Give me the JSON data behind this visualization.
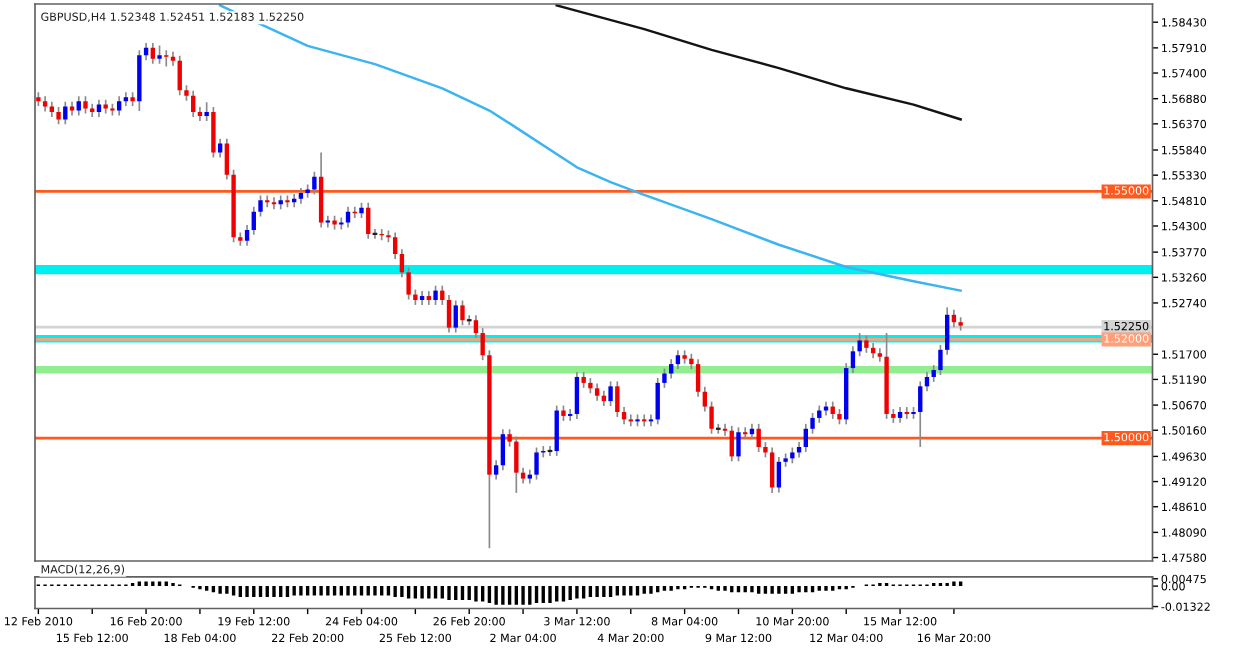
{
  "chart_data": [
    {
      "type": "candlestick",
      "title": "GBPUSD,H4 1.52348 1.52451 1.52183 1.52250",
      "tick_labels": "y",
      "ohlc": [
        [
          1.5691,
          1.5701,
          1.5673,
          1.5683
        ],
        [
          1.5683,
          1.5693,
          1.5662,
          1.5672
        ],
        [
          1.5672,
          1.5682,
          1.5651,
          1.5661
        ],
        [
          1.5661,
          1.5671,
          1.5636,
          1.5646
        ],
        [
          1.5646,
          1.5682,
          1.5636,
          1.5672
        ],
        [
          1.5672,
          1.5682,
          1.5654,
          1.5664
        ],
        [
          1.5664,
          1.5693,
          1.5654,
          1.5683
        ],
        [
          1.5683,
          1.5693,
          1.5658,
          1.5668
        ],
        [
          1.5668,
          1.5678,
          1.5651,
          1.5661
        ],
        [
          1.5661,
          1.5686,
          1.5651,
          1.5676
        ],
        [
          1.5676,
          1.5686,
          1.5658,
          1.5668
        ],
        [
          1.5668,
          1.5678,
          1.5654,
          1.5664
        ],
        [
          1.5664,
          1.5693,
          1.5654,
          1.5683
        ],
        [
          1.5683,
          1.5701,
          1.5673,
          1.5691
        ],
        [
          1.5691,
          1.5701,
          1.5673,
          1.5683
        ],
        [
          1.5683,
          1.5786,
          1.5663,
          1.5776
        ],
        [
          1.5776,
          1.5801,
          1.5766,
          1.5791
        ],
        [
          1.5791,
          1.5801,
          1.5759,
          1.5769
        ],
        [
          1.5769,
          1.5796,
          1.5759,
          1.5776
        ],
        [
          1.5776,
          1.5786,
          1.5753,
          1.5773
        ],
        [
          1.5773,
          1.5783,
          1.5755,
          1.5765
        ],
        [
          1.5765,
          1.5775,
          1.5695,
          1.5705
        ],
        [
          1.5705,
          1.5715,
          1.5684,
          1.5694
        ],
        [
          1.5694,
          1.5704,
          1.5651,
          1.5661
        ],
        [
          1.5661,
          1.5671,
          1.5643,
          1.5653
        ],
        [
          1.5653,
          1.5681,
          1.5643,
          1.5661
        ],
        [
          1.5661,
          1.5671,
          1.5569,
          1.5579
        ],
        [
          1.5579,
          1.5607,
          1.5569,
          1.5597
        ],
        [
          1.5597,
          1.5607,
          1.5524,
          1.5534
        ],
        [
          1.5534,
          1.5544,
          1.5397,
          1.5407
        ],
        [
          1.5407,
          1.5417,
          1.539,
          1.54
        ],
        [
          1.54,
          1.5432,
          1.539,
          1.5422
        ],
        [
          1.5422,
          1.5469,
          1.5412,
          1.5459
        ],
        [
          1.5459,
          1.5492,
          1.5449,
          1.5482
        ],
        [
          1.5482,
          1.5492,
          1.5468,
          1.5478
        ],
        [
          1.5478,
          1.5488,
          1.5464,
          1.5474
        ],
        [
          1.5474,
          1.5492,
          1.5464,
          1.5482
        ],
        [
          1.5482,
          1.5492,
          1.5468,
          1.5478
        ],
        [
          1.5478,
          1.5495,
          1.5468,
          1.5485
        ],
        [
          1.5485,
          1.5507,
          1.5475,
          1.5497
        ],
        [
          1.5497,
          1.5514,
          1.5487,
          1.5504
        ],
        [
          1.5504,
          1.554,
          1.5494,
          1.553
        ],
        [
          1.553,
          1.5579,
          1.5427,
          1.5437
        ],
        [
          1.5437,
          1.5451,
          1.5427,
          1.5441
        ],
        [
          1.5441,
          1.5451,
          1.5423,
          1.5433
        ],
        [
          1.5433,
          1.5447,
          1.5423,
          1.5437
        ],
        [
          1.5437,
          1.5469,
          1.5427,
          1.5459
        ],
        [
          1.5459,
          1.5469,
          1.5446,
          1.5456
        ],
        [
          1.5456,
          1.5477,
          1.5446,
          1.5467
        ],
        [
          1.5467,
          1.5477,
          1.5404,
          1.5414
        ],
        [
          1.5414,
          1.5424,
          1.5404,
          1.5414
        ],
        [
          1.5414,
          1.5424,
          1.5401,
          1.5411
        ],
        [
          1.5411,
          1.5421,
          1.5397,
          1.5407
        ],
        [
          1.5407,
          1.5417,
          1.5363,
          1.5373
        ],
        [
          1.5373,
          1.5383,
          1.5326,
          1.5336
        ],
        [
          1.5336,
          1.5346,
          1.5281,
          1.5291
        ],
        [
          1.5291,
          1.5301,
          1.527,
          1.528
        ],
        [
          1.528,
          1.5298,
          1.527,
          1.5288
        ],
        [
          1.5288,
          1.5298,
          1.527,
          1.528
        ],
        [
          1.528,
          1.5309,
          1.527,
          1.5299
        ],
        [
          1.5299,
          1.5309,
          1.527,
          1.528
        ],
        [
          1.528,
          1.529,
          1.5214,
          1.5224
        ],
        [
          1.5224,
          1.5279,
          1.5214,
          1.5269
        ],
        [
          1.5269,
          1.5279,
          1.5229,
          1.5239
        ],
        [
          1.5239,
          1.5249,
          1.5229,
          1.5239
        ],
        [
          1.5239,
          1.5249,
          1.5203,
          1.5213
        ],
        [
          1.5213,
          1.5223,
          1.5158,
          1.5168
        ],
        [
          1.5168,
          1.5178,
          1.4777,
          1.4926
        ],
        [
          1.4926,
          1.4955,
          1.4916,
          1.4945
        ],
        [
          1.4945,
          1.5018,
          1.4935,
          1.5008
        ],
        [
          1.5008,
          1.5018,
          1.4983,
          1.4993
        ],
        [
          1.4993,
          1.5003,
          1.4889,
          1.493
        ],
        [
          1.493,
          1.494,
          1.4908,
          1.4918
        ],
        [
          1.4918,
          1.4936,
          1.4908,
          1.4926
        ],
        [
          1.4926,
          1.4981,
          1.4916,
          1.4971
        ],
        [
          1.4971,
          1.4984,
          1.4961,
          1.4974
        ],
        [
          1.4974,
          1.4984,
          1.4964,
          1.4974
        ],
        [
          1.4974,
          1.5066,
          1.4964,
          1.5056
        ],
        [
          1.5056,
          1.5066,
          1.5035,
          1.5045
        ],
        [
          1.5045,
          1.5059,
          1.5035,
          1.5049
        ],
        [
          1.5049,
          1.5134,
          1.5039,
          1.5124
        ],
        [
          1.5124,
          1.5134,
          1.5102,
          1.5112
        ],
        [
          1.5112,
          1.5122,
          1.5091,
          1.5101
        ],
        [
          1.5101,
          1.5111,
          1.5076,
          1.5086
        ],
        [
          1.5086,
          1.5096,
          1.5065,
          1.5075
        ],
        [
          1.5075,
          1.5115,
          1.5065,
          1.5105
        ],
        [
          1.5105,
          1.5115,
          1.5043,
          1.5053
        ],
        [
          1.5053,
          1.5063,
          1.5028,
          1.5038
        ],
        [
          1.5038,
          1.5048,
          1.5024,
          1.5034
        ],
        [
          1.5034,
          1.5048,
          1.5024,
          1.5038
        ],
        [
          1.5038,
          1.5048,
          1.5024,
          1.5034
        ],
        [
          1.5034,
          1.5048,
          1.5024,
          1.5038
        ],
        [
          1.5038,
          1.5122,
          1.5028,
          1.5112
        ],
        [
          1.5112,
          1.5141,
          1.5102,
          1.5131
        ],
        [
          1.5131,
          1.516,
          1.5121,
          1.515
        ],
        [
          1.515,
          1.5178,
          1.514,
          1.5168
        ],
        [
          1.5168,
          1.5178,
          1.5151,
          1.5161
        ],
        [
          1.5161,
          1.5171,
          1.514,
          1.515
        ],
        [
          1.515,
          1.516,
          1.5084,
          1.5094
        ],
        [
          1.5094,
          1.5104,
          1.5054,
          1.5064
        ],
        [
          1.5064,
          1.5074,
          1.5009,
          1.5019
        ],
        [
          1.5019,
          1.5029,
          1.5009,
          1.5019
        ],
        [
          1.5019,
          1.5029,
          1.5005,
          1.5015
        ],
        [
          1.5015,
          1.5025,
          1.4953,
          1.4963
        ],
        [
          1.4963,
          1.5022,
          1.4953,
          1.5012
        ],
        [
          1.5012,
          1.5022,
          1.4998,
          1.5008
        ],
        [
          1.5008,
          1.5029,
          1.4998,
          1.5019
        ],
        [
          1.5019,
          1.5029,
          1.4972,
          1.4982
        ],
        [
          1.4982,
          1.4992,
          1.4961,
          1.4971
        ],
        [
          1.4971,
          1.4981,
          1.4889,
          1.49
        ],
        [
          1.49,
          1.4962,
          1.489,
          1.4952
        ],
        [
          1.4952,
          1.4969,
          1.4942,
          1.4959
        ],
        [
          1.4959,
          1.4981,
          1.4949,
          1.4971
        ],
        [
          1.4971,
          1.4992,
          1.4961,
          1.4982
        ],
        [
          1.4982,
          1.5029,
          1.4972,
          1.5019
        ],
        [
          1.5019,
          1.5051,
          1.5009,
          1.5041
        ],
        [
          1.5041,
          1.5066,
          1.5031,
          1.5056
        ],
        [
          1.5056,
          1.5074,
          1.5046,
          1.5064
        ],
        [
          1.5064,
          1.5074,
          1.5039,
          1.5049
        ],
        [
          1.5049,
          1.5059,
          1.5028,
          1.5038
        ],
        [
          1.5038,
          1.5152,
          1.5028,
          1.5142
        ],
        [
          1.5142,
          1.5186,
          1.5132,
          1.5176
        ],
        [
          1.5176,
          1.5213,
          1.5166,
          1.5198
        ],
        [
          1.5198,
          1.5208,
          1.5173,
          1.5183
        ],
        [
          1.5183,
          1.5193,
          1.5162,
          1.5172
        ],
        [
          1.5172,
          1.5182,
          1.5155,
          1.5165
        ],
        [
          1.5165,
          1.5213,
          1.5039,
          1.5049
        ],
        [
          1.5049,
          1.5059,
          1.5031,
          1.5041
        ],
        [
          1.5041,
          1.5063,
          1.5031,
          1.5053
        ],
        [
          1.5053,
          1.5063,
          1.5039,
          1.5049
        ],
        [
          1.5049,
          1.5063,
          1.5039,
          1.5053
        ],
        [
          1.5053,
          1.5115,
          1.4982,
          1.5105
        ],
        [
          1.5105,
          1.5134,
          1.5095,
          1.5124
        ],
        [
          1.5124,
          1.5148,
          1.5114,
          1.5138
        ],
        [
          1.5138,
          1.5189,
          1.5128,
          1.5179
        ],
        [
          1.5179,
          1.5265,
          1.5169,
          1.525
        ],
        [
          1.525,
          1.526,
          1.5225,
          1.5235
        ],
        [
          1.5235,
          1.5245,
          1.5218,
          1.5228
        ],
        null,
        null,
        null,
        null,
        null,
        null,
        null,
        null,
        null,
        null,
        null,
        null,
        null,
        null,
        null,
        null,
        null,
        null,
        null,
        null,
        null,
        null,
        null,
        null,
        null,
        null,
        null,
        null
      ],
      "series": [
        {
          "type": "line",
          "color": "#3cb4f0",
          "values": [
            null,
            null,
            null,
            null,
            null,
            null,
            null,
            null,
            null,
            null,
            null,
            null,
            null,
            null,
            null,
            null,
            null,
            null,
            null,
            null,
            null,
            null,
            null,
            null,
            null,
            null,
            null,
            1.5877,
            null,
            null,
            1.5858,
            null,
            null,
            null,
            null,
            null,
            null,
            null,
            null,
            null,
            1.5795,
            null,
            null,
            null,
            null,
            null,
            null,
            null,
            null,
            null,
            1.5758,
            null,
            null,
            null,
            null,
            null,
            null,
            null,
            null,
            null,
            1.5709,
            null,
            null,
            null,
            null,
            null,
            null,
            1.5664,
            null,
            null,
            1.5638,
            null,
            null,
            null,
            null,
            null,
            null,
            null,
            null,
            null,
            1.5549,
            null,
            null,
            null,
            null,
            1.5519,
            null,
            null,
            null,
            null,
            1.5493,
            null,
            null,
            null,
            null,
            null,
            null,
            null,
            null,
            null,
            1.5444,
            null,
            null,
            null,
            null,
            null,
            null,
            null,
            null,
            null,
            1.5392,
            null,
            null,
            null,
            null,
            null,
            null,
            null,
            null,
            null,
            1.5347,
            null,
            null,
            null,
            null,
            null,
            null,
            null,
            null,
            null,
            1.5318,
            null,
            null,
            null,
            null,
            null,
            null,
            1.5299,
            null,
            null,
            null,
            null,
            null,
            null,
            null,
            null,
            null,
            null,
            null,
            null,
            null,
            null,
            null,
            null,
            null,
            null,
            null,
            null,
            null,
            null,
            null,
            null,
            null,
            null,
            null,
            null
          ]
        },
        {
          "type": "line",
          "color": "#141414",
          "values": [
            null,
            null,
            null,
            null,
            null,
            null,
            null,
            null,
            null,
            null,
            null,
            null,
            null,
            null,
            null,
            null,
            null,
            null,
            null,
            null,
            null,
            null,
            null,
            null,
            null,
            null,
            null,
            null,
            null,
            null,
            null,
            null,
            null,
            null,
            null,
            null,
            null,
            null,
            null,
            null,
            null,
            null,
            null,
            null,
            null,
            null,
            null,
            null,
            null,
            null,
            null,
            null,
            null,
            null,
            null,
            null,
            null,
            null,
            null,
            null,
            null,
            null,
            null,
            null,
            null,
            null,
            null,
            null,
            null,
            null,
            null,
            null,
            null,
            null,
            null,
            null,
            null,
            1.5877,
            null,
            null,
            1.5866,
            null,
            null,
            null,
            null,
            null,
            null,
            null,
            null,
            null,
            1.5829,
            null,
            null,
            null,
            null,
            null,
            null,
            null,
            null,
            null,
            1.5787,
            null,
            null,
            null,
            null,
            null,
            null,
            null,
            null,
            null,
            1.575,
            null,
            null,
            null,
            null,
            null,
            null,
            null,
            null,
            null,
            1.5709,
            null,
            null,
            null,
            null,
            null,
            null,
            null,
            null,
            null,
            1.5676,
            null,
            null,
            null,
            null,
            null,
            null,
            1.5646,
            null,
            null,
            null,
            null,
            null,
            null,
            null,
            null,
            null,
            null,
            null,
            null,
            null,
            null,
            null,
            null,
            null,
            null,
            null,
            null,
            null,
            null,
            null,
            null,
            null,
            null,
            null,
            null
          ]
        }
      ],
      "ylim": [
        1.4751,
        1.588
      ],
      "yticks": [
        {
          "value": 1.5843,
          "label": "1.58430"
        },
        {
          "value": 1.5791,
          "label": "1.57910"
        },
        {
          "value": 1.574,
          "label": "1.57400"
        },
        {
          "value": 1.5688,
          "label": "1.56880"
        },
        {
          "value": 1.5637,
          "label": "1.56370"
        },
        {
          "value": 1.5584,
          "label": "1.55840"
        },
        {
          "value": 1.5533,
          "label": "1.55330"
        },
        {
          "value": 1.5481,
          "label": "1.54810"
        },
        {
          "value": 1.543,
          "label": "1.54300"
        },
        {
          "value": 1.5377,
          "label": "1.53770"
        },
        {
          "value": 1.5326,
          "label": "1.53260"
        },
        {
          "value": 1.5274,
          "label": "1.52740"
        },
        {
          "value": 1.517,
          "label": "1.51700"
        },
        {
          "value": 1.5119,
          "label": "1.51190"
        },
        {
          "value": 1.5067,
          "label": "1.50670"
        },
        {
          "value": 1.5016,
          "label": "1.50160"
        },
        {
          "value": 1.4963,
          "label": "1.49630"
        },
        {
          "value": 1.4912,
          "label": "1.49120"
        },
        {
          "value": 1.4861,
          "label": "1.48610"
        },
        {
          "value": 1.4809,
          "label": "1.48090"
        },
        {
          "value": 1.4758,
          "label": "1.47580"
        }
      ],
      "ref_lines": [
        {
          "axis": "y",
          "value": 1.55,
          "label": "1.55000",
          "color": "#ff5a1e"
        },
        {
          "axis": "y",
          "value": 1.5225,
          "label": "1.52250",
          "color": "#d4d4d4"
        },
        {
          "axis": "y",
          "value": 1.52,
          "label": "1.52000",
          "color": "#ffa07a"
        },
        {
          "axis": "y",
          "value": 1.5,
          "label": "1.50000",
          "color": "#ff5a1e"
        }
      ],
      "bands": [
        {
          "axis": "y",
          "from": 1.5332,
          "to": 1.5351,
          "color": "#00f0f0"
        },
        {
          "axis": "y",
          "from": 1.5194,
          "to": 1.5209,
          "color": "#00f0f0"
        },
        {
          "axis": "y",
          "from": 1.5131,
          "to": 1.5146,
          "color": "#90ee90"
        }
      ]
    },
    {
      "type": "bar",
      "title": "MACD(12,26,9)",
      "color": "#000000",
      "categories": [
        "12 Feb 2010",
        null,
        null,
        null,
        null,
        null,
        null,
        null,
        "15 Feb 12:00",
        null,
        null,
        null,
        null,
        null,
        null,
        null,
        "16 Feb 20:00",
        null,
        null,
        null,
        null,
        null,
        null,
        null,
        "18 Feb 04:00",
        null,
        null,
        null,
        null,
        null,
        null,
        null,
        "19 Feb 12:00",
        null,
        null,
        null,
        null,
        null,
        null,
        null,
        "22 Feb 20:00",
        null,
        null,
        null,
        null,
        null,
        null,
        null,
        "24 Feb 04:00",
        null,
        null,
        null,
        null,
        null,
        null,
        null,
        "25 Feb 12:00",
        null,
        null,
        null,
        null,
        null,
        null,
        null,
        "26 Feb 20:00",
        null,
        null,
        null,
        null,
        null,
        null,
        null,
        "2 Mar 04:00",
        null,
        null,
        null,
        null,
        null,
        null,
        null,
        "3 Mar 12:00",
        null,
        null,
        null,
        null,
        null,
        null,
        null,
        "4 Mar 20:00",
        null,
        null,
        null,
        null,
        null,
        null,
        null,
        "8 Mar 04:00",
        null,
        null,
        null,
        null,
        null,
        null,
        null,
        "9 Mar 12:00",
        null,
        null,
        null,
        null,
        null,
        null,
        null,
        "10 Mar 20:00",
        null,
        null,
        null,
        null,
        null,
        null,
        null,
        "12 Mar 04:00",
        null,
        null,
        null,
        null,
        null,
        null,
        null,
        "15 Mar 12:00",
        null,
        null,
        null,
        null,
        null,
        null,
        null,
        "16 Mar 20:00",
        null,
        null,
        null,
        null,
        null,
        null,
        null,
        null,
        null,
        null,
        null,
        null,
        null,
        null,
        null,
        null,
        null,
        null,
        null,
        null,
        null,
        null,
        null,
        null,
        null,
        null,
        null,
        null,
        null
      ],
      "values": [
        0.001,
        0.001,
        0.001,
        0.001,
        0.001,
        0.001,
        0.001,
        0.001,
        0.001,
        0.001,
        0.001,
        0.001,
        0.001,
        0.001,
        0.002,
        0.003,
        0.003,
        0.003,
        0.003,
        0.003,
        0.002,
        0.001,
        0.0,
        -0.001,
        -0.002,
        -0.003,
        -0.004,
        -0.005,
        -0.005,
        -0.006,
        -0.007,
        -0.007,
        -0.007,
        -0.007,
        -0.007,
        -0.007,
        -0.007,
        -0.007,
        -0.006,
        -0.006,
        -0.006,
        -0.006,
        -0.006,
        -0.006,
        -0.006,
        -0.006,
        -0.006,
        -0.006,
        -0.006,
        -0.006,
        -0.006,
        -0.006,
        -0.006,
        -0.007,
        -0.007,
        -0.008,
        -0.008,
        -0.008,
        -0.008,
        -0.008,
        -0.008,
        -0.009,
        -0.009,
        -0.009,
        -0.009,
        -0.01,
        -0.01,
        -0.011,
        -0.012,
        -0.012,
        -0.012,
        -0.012,
        -0.012,
        -0.012,
        -0.011,
        -0.011,
        -0.011,
        -0.01,
        -0.01,
        -0.009,
        -0.008,
        -0.008,
        -0.007,
        -0.007,
        -0.007,
        -0.007,
        -0.006,
        -0.006,
        -0.006,
        -0.006,
        -0.005,
        -0.005,
        -0.004,
        -0.003,
        -0.003,
        -0.002,
        -0.002,
        -0.001,
        -0.001,
        -0.001,
        -0.002,
        -0.003,
        -0.003,
        -0.004,
        -0.004,
        -0.004,
        -0.004,
        -0.005,
        -0.005,
        -0.005,
        -0.005,
        -0.005,
        -0.005,
        -0.004,
        -0.004,
        -0.004,
        -0.003,
        -0.003,
        -0.003,
        -0.002,
        -0.002,
        -0.001,
        0.0,
        0.001,
        0.001,
        0.002,
        0.002,
        0.001,
        0.001,
        0.001,
        0.001,
        0.001,
        0.001,
        0.002,
        0.002,
        0.002,
        0.003,
        0.003,
        null,
        null,
        null,
        null,
        null,
        null,
        null,
        null,
        null,
        null,
        null,
        null,
        null,
        null,
        null,
        null,
        null,
        null,
        null,
        null,
        null,
        null,
        null,
        null,
        null,
        null,
        null,
        null
      ],
      "ylim": [
        -0.0145,
        0.006
      ],
      "yticks": [
        0.00475,
        {
          "value": 0,
          "label": "0.00"
        },
        -0.01322
      ]
    }
  ]
}
